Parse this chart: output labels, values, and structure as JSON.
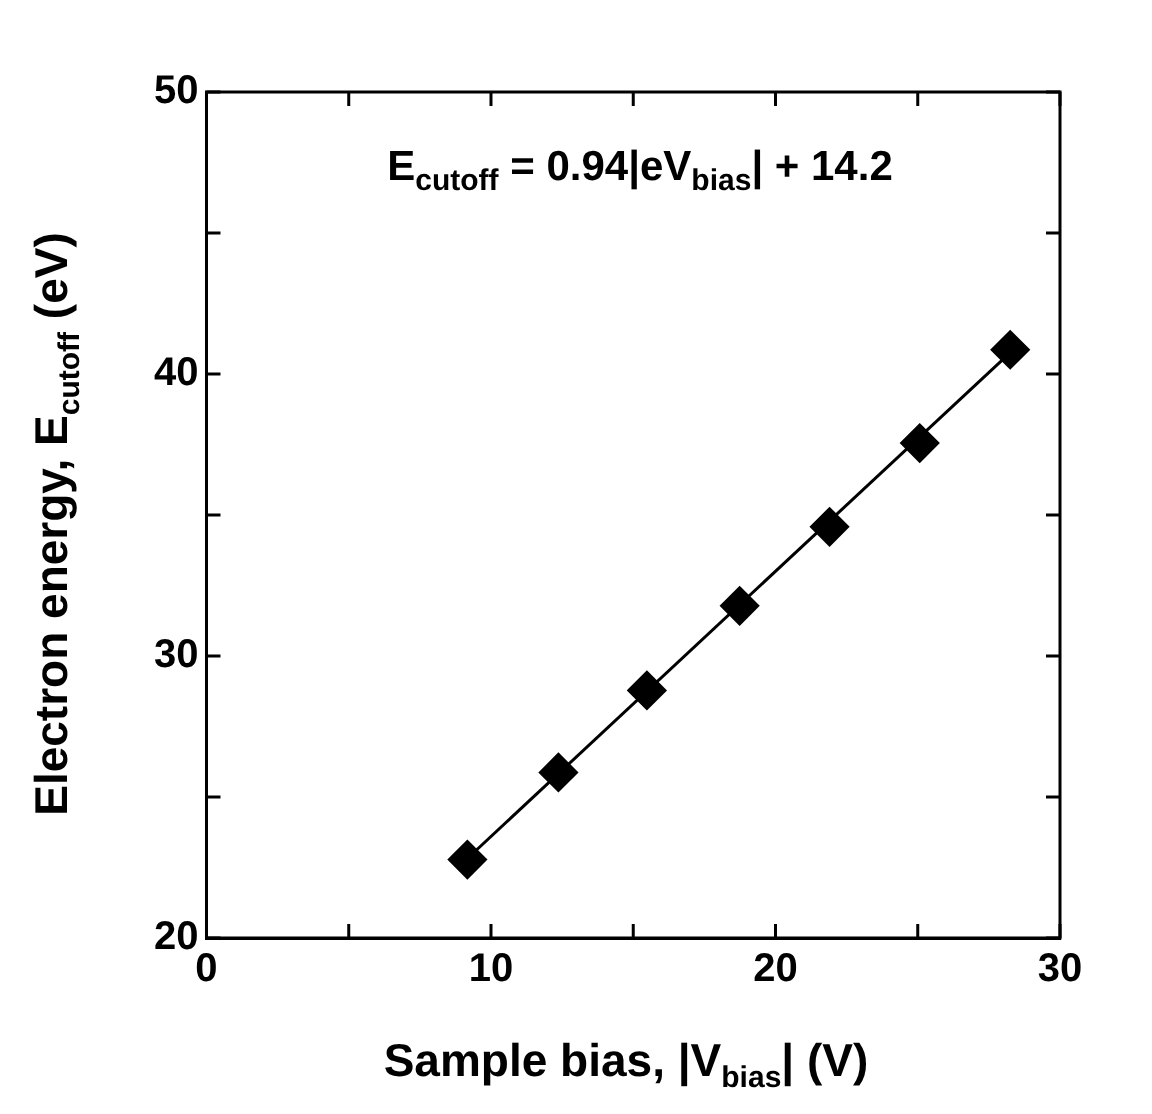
{
  "chart_data": {
    "type": "scatter",
    "xlabel": "Sample bias, |V$_{bias}$| (V)",
    "ylabel": "Electron energy, E$_{cutoff}$ (eV)",
    "annotations": [
      "E$_{cutoff}$ = 0.94|eV$_{bias}$| + 14.2"
    ],
    "xlim": [
      0,
      30
    ],
    "ylim": [
      20,
      50
    ],
    "xticks": [
      0,
      {
        "value": 5,
        "label": null
      },
      10,
      {
        "value": 15,
        "label": null
      },
      20,
      {
        "value": 25,
        "label": null
      },
      30
    ],
    "yticks": [
      20,
      {
        "value": 25,
        "label": null
      },
      30,
      {
        "value": 35,
        "label": null
      },
      40,
      {
        "value": 45,
        "label": null
      },
      50
    ],
    "grid": false,
    "series": [
      {
        "type": "scatter",
        "color": "#000000",
        "marker": "diamond",
        "x": [
          9.17,
          12.37,
          15.48,
          18.74,
          21.9,
          25.07,
          28.25
        ],
        "values": [
          22.78,
          25.87,
          28.78,
          31.78,
          34.58,
          37.55,
          40.86
        ]
      },
      {
        "type": "line",
        "color": "#000000",
        "marker": "none",
        "line_style": "solid",
        "x": [
          9.17,
          28.25
        ],
        "values": [
          22.82,
          40.76
        ]
      }
    ]
  }
}
